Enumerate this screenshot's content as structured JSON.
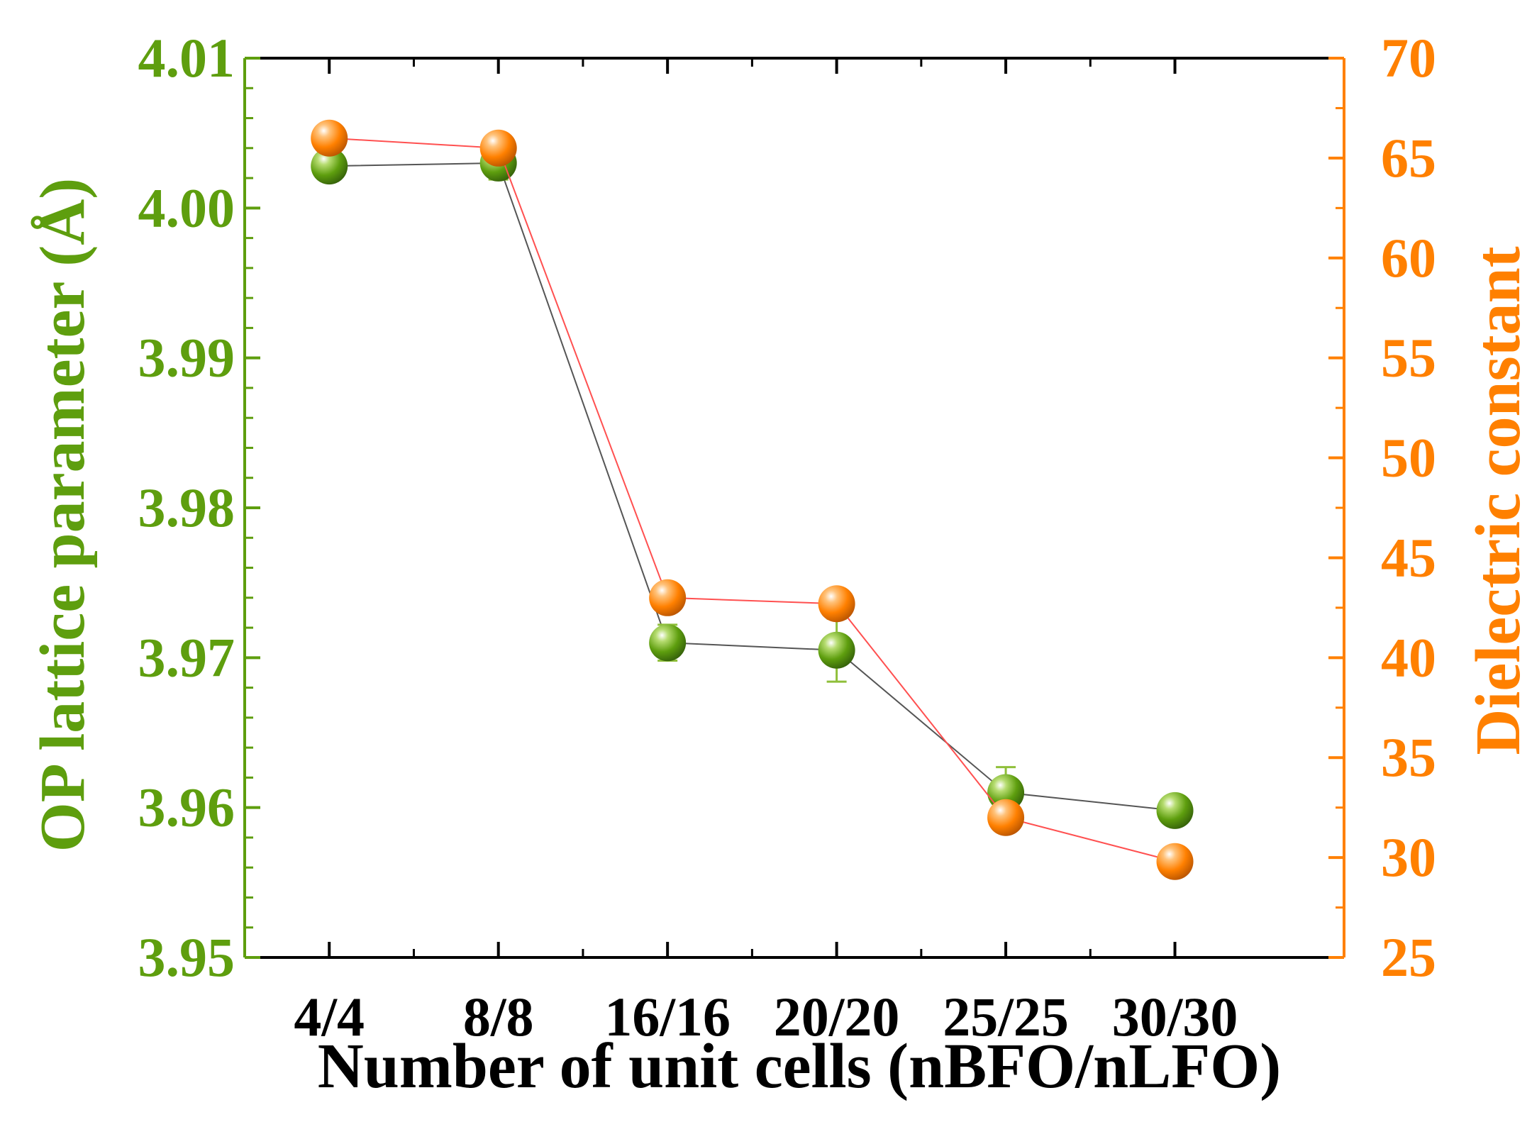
{
  "chart_data": {
    "type": "line",
    "categories": [
      "4/4",
      "8/8",
      "16/16",
      "20/20",
      "25/25",
      "30/30"
    ],
    "xlabel": "Number of unit cells (nBFO/nLFO)",
    "y_left": {
      "label": "OP lattice parameter (Å)",
      "lim": [
        3.95,
        4.01
      ],
      "ticks": [
        "3.95",
        "3.96",
        "3.97",
        "3.98",
        "3.99",
        "4.00",
        "4.01"
      ],
      "color": "#5E9E0E"
    },
    "y_right": {
      "label": "Dielectric constant",
      "lim": [
        25,
        70
      ],
      "ticks": [
        "25",
        "30",
        "35",
        "40",
        "45",
        "50",
        "55",
        "60",
        "65",
        "70"
      ],
      "color": "#FF8000"
    },
    "series": [
      {
        "axis": "left",
        "values": [
          4.0028,
          4.003,
          3.971,
          3.9705,
          3.961,
          3.9598
        ],
        "errors": [
          0,
          0.0011,
          0.0012,
          0.0021,
          0.0017,
          0
        ],
        "line_color": "#555555",
        "marker_color": "#5E9E0E"
      },
      {
        "axis": "right",
        "values": [
          66.0,
          65.5,
          43.0,
          42.7,
          32.0,
          29.8
        ],
        "line_color": "#FF5050",
        "marker_color": "#FF8000"
      }
    ],
    "grid": false,
    "legend": "none"
  }
}
